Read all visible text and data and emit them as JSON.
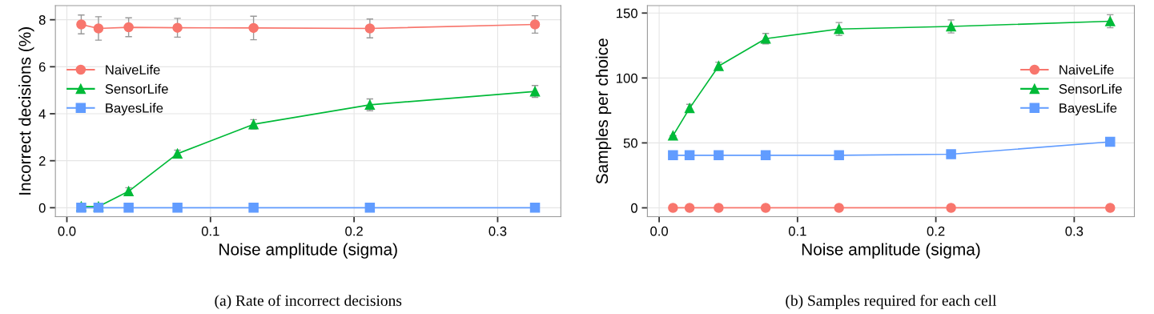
{
  "chart_data": [
    {
      "type": "line",
      "title": "(a) Rate of incorrect decisions",
      "xlabel": "Noise amplitude (sigma)",
      "ylabel": "Incorrect decisions (%)",
      "x": [
        0.01,
        0.022,
        0.043,
        0.077,
        0.13,
        0.211,
        0.326
      ],
      "series": [
        {
          "name": "NaiveLife",
          "color": "#f8766d",
          "marker": "circle",
          "values": [
            7.8,
            7.63,
            7.68,
            7.66,
            7.65,
            7.63,
            7.8
          ],
          "errors": [
            0.4,
            0.5,
            0.4,
            0.4,
            0.5,
            0.4,
            0.37
          ]
        },
        {
          "name": "SensorLife",
          "color": "#00ba38",
          "marker": "triangle",
          "values": [
            0.05,
            0.05,
            0.7,
            2.3,
            3.55,
            4.38,
            4.95
          ],
          "errors": [
            null,
            null,
            0.15,
            0.15,
            0.2,
            0.25,
            0.25
          ]
        },
        {
          "name": "BayesLife",
          "color": "#619cff",
          "marker": "square",
          "values": [
            0,
            0,
            0,
            0,
            0,
            0,
            0
          ]
        }
      ],
      "xlim": [
        -0.008,
        0.344
      ],
      "xticks": [
        {
          "value": 0,
          "label": "0.0"
        },
        0.1,
        0.2,
        0.3
      ],
      "ylim": [
        -0.38,
        8.6
      ],
      "yticks": [
        0,
        2,
        4,
        6,
        8
      ],
      "grid": true,
      "legend": "left"
    },
    {
      "type": "line",
      "title": "(b) Samples required for each cell",
      "xlabel": "Noise amplitude (sigma)",
      "ylabel": "Samples per choice",
      "x": [
        0.01,
        0.022,
        0.043,
        0.077,
        0.13,
        0.211,
        0.326
      ],
      "series": [
        {
          "name": "NaiveLife",
          "color": "#f8766d",
          "marker": "circle",
          "values": [
            0,
            0,
            0,
            0,
            0,
            0,
            0
          ]
        },
        {
          "name": "SensorLife",
          "color": "#00ba38",
          "marker": "triangle",
          "values": [
            55.6,
            76.7,
            109.2,
            130.3,
            137.7,
            139.7,
            143.7
          ],
          "errors": [
            null,
            3,
            3,
            4,
            5,
            5,
            5
          ]
        },
        {
          "name": "BayesLife",
          "color": "#619cff",
          "marker": "square",
          "values": [
            40.5,
            40.5,
            40.5,
            40.5,
            40.5,
            41.3,
            50.8
          ]
        }
      ],
      "xlim": [
        -0.0085,
        0.3435
      ],
      "xticks": [
        {
          "value": 0,
          "label": "0.0"
        },
        0.1,
        0.2,
        0.3
      ],
      "ylim": [
        -6.8,
        155.7
      ],
      "yticks": [
        0,
        50,
        100,
        150
      ],
      "grid": true,
      "legend": "right"
    }
  ]
}
